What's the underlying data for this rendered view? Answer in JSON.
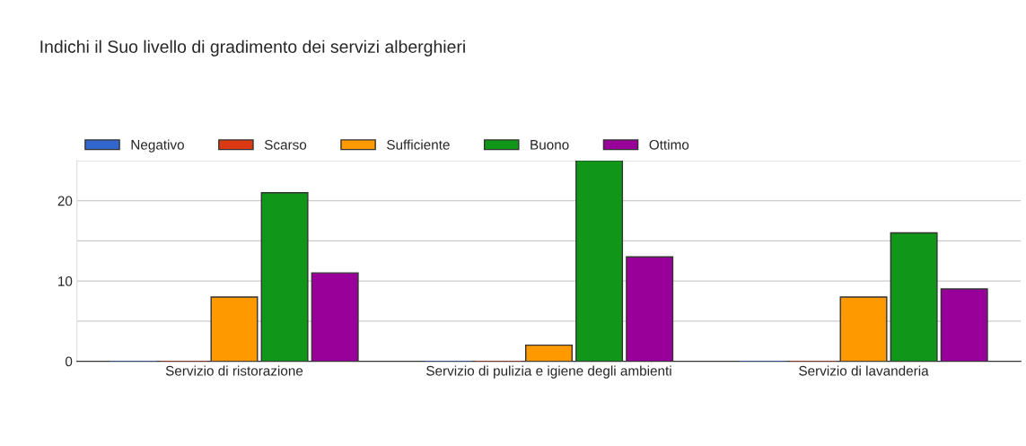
{
  "chart_data": {
    "type": "bar",
    "title": "Indichi il Suo livello di gradimento dei servizi alberghieri",
    "categories": [
      "Servizio di ristorazione",
      "Servizio di pulizia e igiene degli ambienti",
      "Servizio di lavanderia"
    ],
    "series": [
      {
        "name": "Negativo",
        "color": "#3366cc",
        "values": [
          0,
          0,
          0
        ]
      },
      {
        "name": "Scarso",
        "color": "#dc3912",
        "values": [
          0,
          0,
          0
        ]
      },
      {
        "name": "Sufficiente",
        "color": "#ff9900",
        "values": [
          8,
          2,
          8
        ]
      },
      {
        "name": "Buono",
        "color": "#109618",
        "values": [
          21,
          25,
          16
        ]
      },
      {
        "name": "Ottimo",
        "color": "#990099",
        "values": [
          11,
          13,
          9
        ]
      }
    ],
    "ylim": [
      0,
      25
    ],
    "yticks": [
      0,
      {
        "value": 5,
        "label": null
      },
      10,
      {
        "value": 15,
        "label": null
      },
      20,
      {
        "value": 25,
        "label": null
      }
    ],
    "grid": "y",
    "legend": "top left"
  }
}
